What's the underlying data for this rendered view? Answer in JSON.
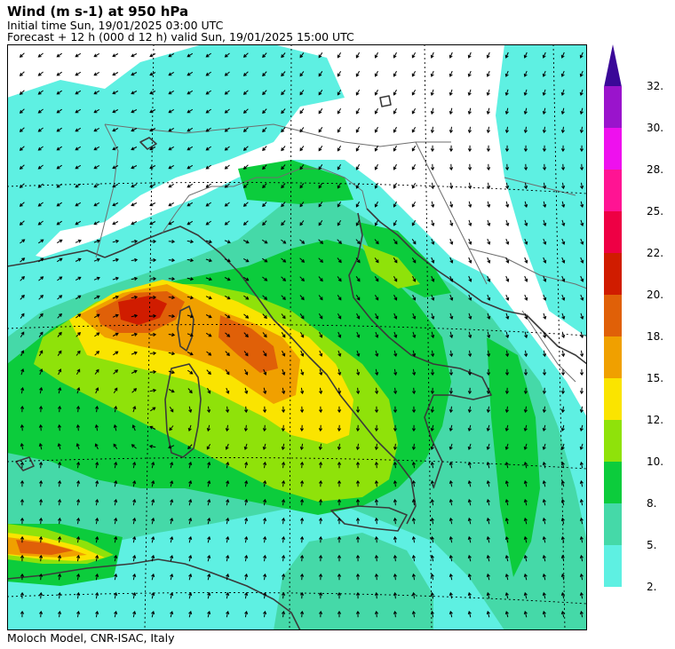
{
  "header": {
    "title": "Wind (m s-1) at 950 hPa",
    "initial_time": "Initial time  Sun, 19/01/2025  03:00 UTC",
    "forecast": "Forecast  +  12 h  (000 d 12 h)  valid Sun, 19/01/2025 15:00 UTC"
  },
  "footer": {
    "credit": "Moloch Model, CNR-ISAC, Italy"
  },
  "colorbar": {
    "top_color": "#3a0898",
    "levels": [
      {
        "label": "2.",
        "color": "#5ef0e2"
      },
      {
        "label": "5.",
        "color": "#45d9a8"
      },
      {
        "label": "8.",
        "color": "#0ccc3c"
      },
      {
        "label": "10.",
        "color": "#8fe20a"
      },
      {
        "label": "12.",
        "color": "#fae400"
      },
      {
        "label": "15.",
        "color": "#f0a000"
      },
      {
        "label": "18.",
        "color": "#e06008"
      },
      {
        "label": "20.",
        "color": "#d01c00"
      },
      {
        "label": "22.",
        "color": "#ee0044"
      },
      {
        "label": "25.",
        "color": "#ff1493"
      },
      {
        "label": "28.",
        "color": "#ee10ee"
      },
      {
        "label": "30.",
        "color": "#9a14cc"
      },
      {
        "label": "32.",
        "color": ""
      }
    ]
  },
  "map": {
    "land_color": "#ffffff",
    "coast_color": "#3a3a3a",
    "border_color": "#6e6e6e",
    "grid_color": "#000000",
    "arrow_color": "#000000"
  }
}
